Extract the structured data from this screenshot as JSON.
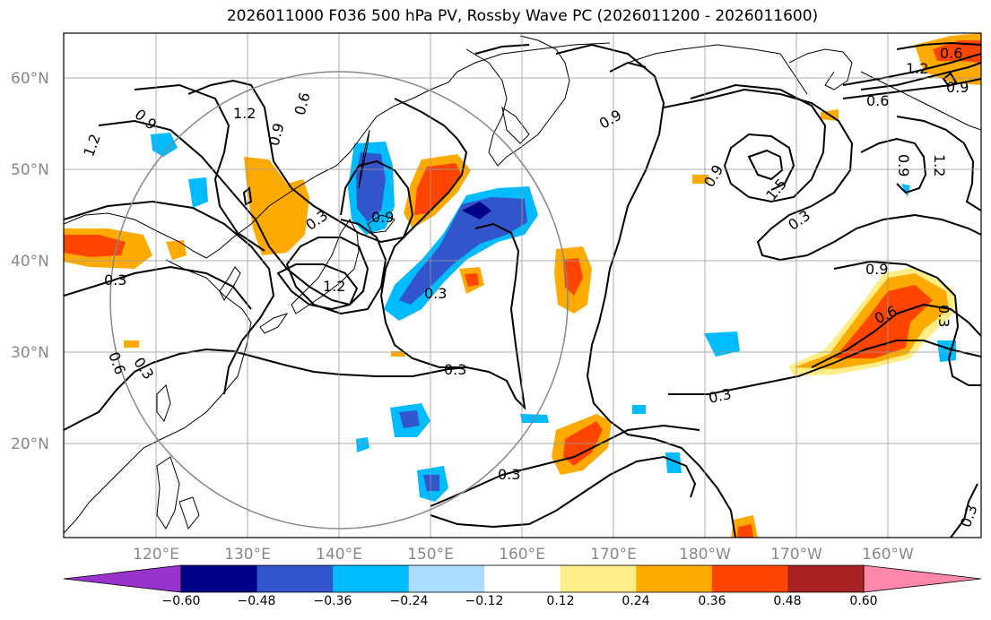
{
  "title": "2026011000 F036 500 hPa PV, Rossby Wave PC (2026011200 - 2026011600)",
  "lat_labels": [
    "60°N",
    "50°N",
    "40°N",
    "30°N",
    "20°N"
  ],
  "lon_labels": [
    "120°E",
    "130°E",
    "140°E",
    "150°E",
    "160°E",
    "170°E",
    "180°W",
    "170°W",
    "160°W"
  ],
  "colorbar": {
    "colors": [
      "#9933cc",
      "#000088",
      "#3355cc",
      "#00bbff",
      "#aaddff",
      "#ffffff",
      "#ffee88",
      "#ffaa00",
      "#ff4400",
      "#aa2222",
      "#ff88aa"
    ],
    "tick_labels": [
      "−0.60",
      "−0.48",
      "−0.36",
      "−0.24",
      "−0.12",
      "0.12",
      "0.24",
      "0.36",
      "0.48",
      "0.60"
    ]
  },
  "contour_labels": [
    "1.2",
    "0.9",
    "0.6",
    "0.9",
    "1.2",
    "0.3",
    "0.9",
    "1.2",
    "0.3",
    "0.3",
    "0.6",
    "0.3",
    "0.3",
    "0.3",
    "0.9",
    "0.9",
    "1.5",
    "0.3",
    "0.6",
    "0.9",
    "1.2",
    "0.9",
    "0.6",
    "0.3",
    "0.3",
    "0.3",
    "1.2",
    "0.6",
    "0.9"
  ]
}
